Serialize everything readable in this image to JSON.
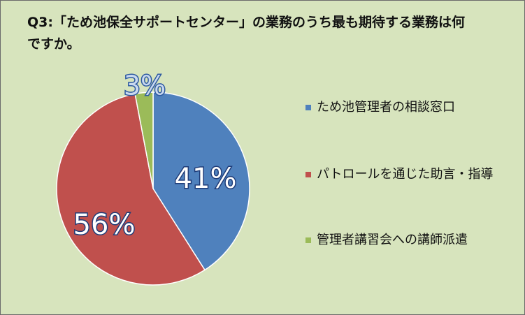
{
  "title": "Q3:「ため池保全サポートセンター」の業務のうち最も期待する業務は何ですか。",
  "chart_data": {
    "type": "pie",
    "start_angle_deg": 0,
    "direction": "clockwise",
    "slices": [
      {
        "label": "ため池管理者の相談窓口",
        "value": 41,
        "display": "41%",
        "color": "#4f81bd"
      },
      {
        "label": "パトロールを通じた助言・指導",
        "value": 56,
        "display": "56%",
        "color": "#c0504d"
      },
      {
        "label": "管理者講習会への講師派遣",
        "value": 3,
        "display": "3%",
        "color": "#9bbb59"
      }
    ],
    "legend_position": "right"
  }
}
